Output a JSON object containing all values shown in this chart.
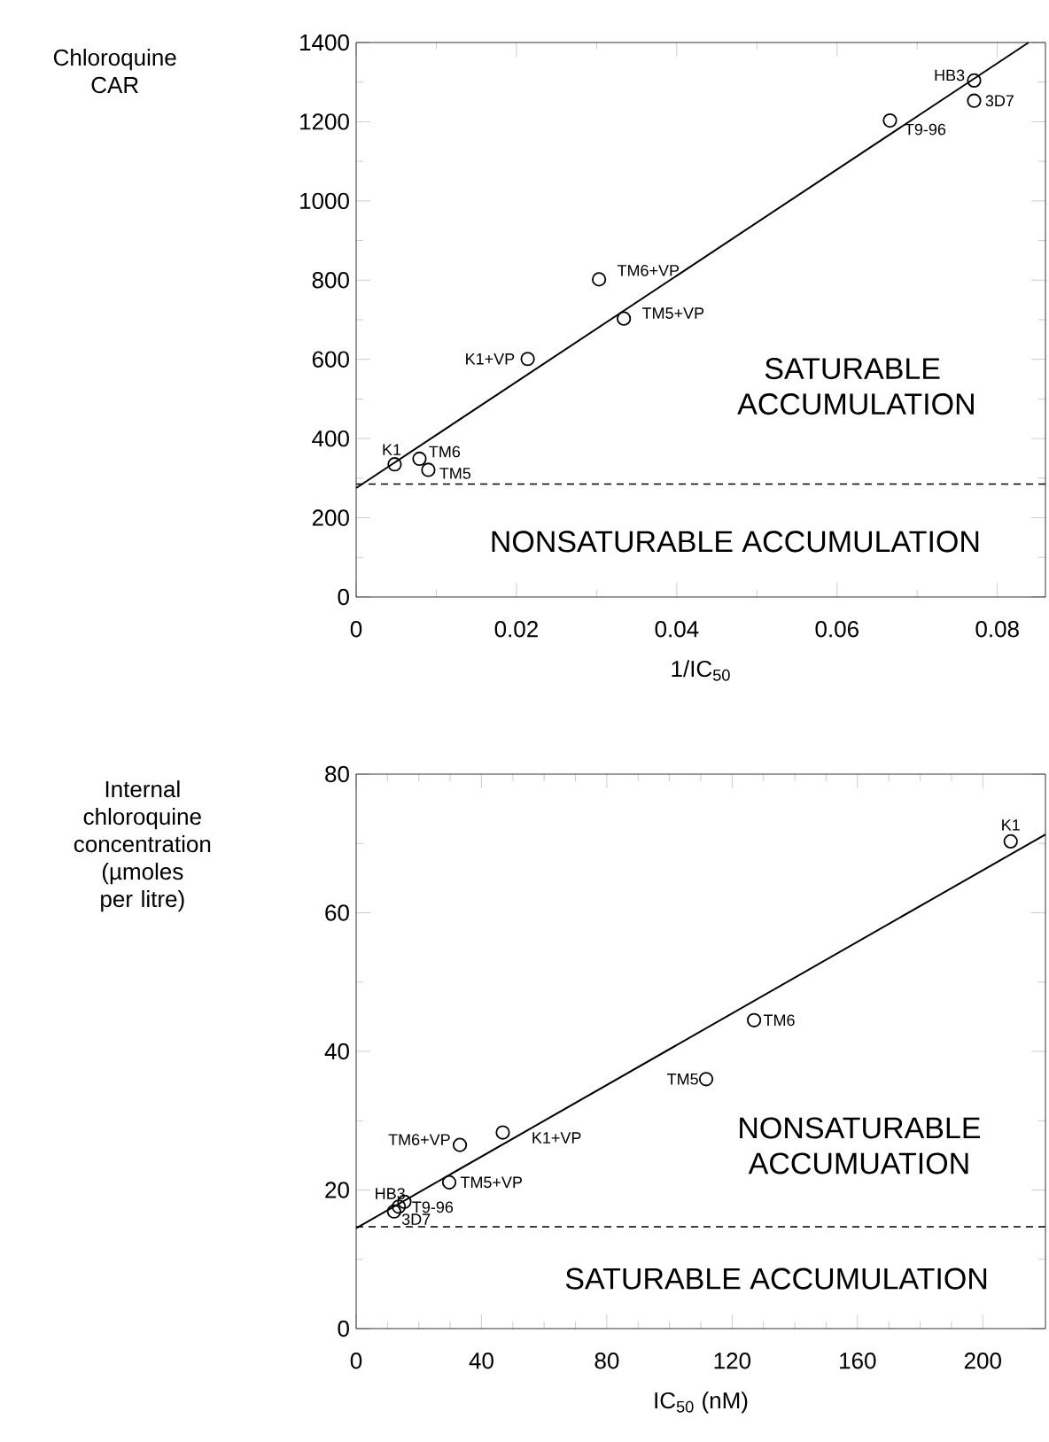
{
  "chart_data": [
    {
      "type": "scatter",
      "xlabel": "1/IC$_{50}$",
      "ylabel": "Chloroquine CAR",
      "xlim": [
        0,
        0.086
      ],
      "ylim": [
        0,
        1400
      ],
      "xticks": [
        0,
        0.02,
        0.04,
        0.06,
        0.08
      ],
      "yticks": [
        0,
        200,
        400,
        600,
        800,
        1000,
        1200,
        1400
      ],
      "series": [
        {
          "marker": "circle",
          "color": "#000000",
          "x": [
            0.0048,
            0.0079,
            0.009,
            0.0214,
            0.0303,
            0.0334,
            0.0666,
            0.0771,
            0.0771
          ],
          "values": [
            335,
            349,
            321,
            601,
            802,
            703,
            1203,
            1304,
            1253
          ]
        },
        {
          "type": "line",
          "color": "#000000",
          "x": [
            0,
            0.0839
          ],
          "values": [
            275,
            1400
          ]
        }
      ],
      "ref_lines": [
        {
          "axis": "y",
          "value": 285,
          "line_style": "dashed",
          "color": "#000000"
        }
      ],
      "annotations": [
        {
          "text": "K1",
          "x": 0.0048,
          "y": 335
        },
        {
          "text": "TM6",
          "x": 0.0079,
          "y": 349
        },
        {
          "text": "TM5",
          "x": 0.009,
          "y": 321
        },
        {
          "text": "K1+VP",
          "x": 0.0214,
          "y": 601
        },
        {
          "text": "TM6+VP",
          "x": 0.0303,
          "y": 802
        },
        {
          "text": "TM5+VP",
          "x": 0.0334,
          "y": 703
        },
        {
          "text": "T9-96",
          "x": 0.0666,
          "y": 1203
        },
        {
          "text": "HB3",
          "x": 0.0771,
          "y": 1304
        },
        {
          "text": "3D7",
          "x": 0.0771,
          "y": 1253
        },
        "SATURABLE ACCUMULATION",
        "NONSATURABLE ACCUMULATION"
      ]
    },
    {
      "type": "scatter",
      "xlabel": "IC$_{50}$ (nM)",
      "ylabel": "Internal chloroquine concentration (µmoles per litre)",
      "xlim": [
        0,
        220
      ],
      "ylim": [
        0,
        80
      ],
      "xticks": [
        0,
        40,
        80,
        120,
        160,
        200
      ],
      "yticks": [
        0,
        20,
        40,
        60,
        80
      ],
      "series": [
        {
          "marker": "circle",
          "color": "#000000",
          "x": [
            208.9,
            127,
            111.7,
            46.8,
            33.1,
            29.7,
            13.6,
            15.4,
            12.1
          ],
          "values": [
            70.3,
            44.5,
            36,
            28.3,
            26.5,
            21.1,
            17.6,
            18.3,
            16.9
          ]
        },
        {
          "type": "line",
          "color": "#000000",
          "x": [
            0,
            220
          ],
          "values": [
            14.5,
            71.3
          ]
        }
      ],
      "ref_lines": [
        {
          "axis": "y",
          "value": 14.7,
          "line_style": "dashed",
          "color": "#000000"
        }
      ],
      "annotations": [
        {
          "text": "K1",
          "x": 208.9,
          "y": 70.3
        },
        {
          "text": "TM6",
          "x": 127,
          "y": 44.5
        },
        {
          "text": "TM5",
          "x": 111.7,
          "y": 36
        },
        {
          "text": "K1+VP",
          "x": 46.8,
          "y": 28.3
        },
        {
          "text": "TM6+VP",
          "x": 33.1,
          "y": 26.5
        },
        {
          "text": "TM5+VP",
          "x": 29.7,
          "y": 21.1
        },
        {
          "text": "HB3",
          "x": 13.6,
          "y": 17.6
        },
        {
          "text": "T9-96",
          "x": 15.4,
          "y": 18.3
        },
        {
          "text": "3D7",
          "x": 12.1,
          "y": 16.9
        },
        "NONSATURABLE ACCUMUATION",
        "SATURABLE ACCUMULATION"
      ]
    }
  ]
}
